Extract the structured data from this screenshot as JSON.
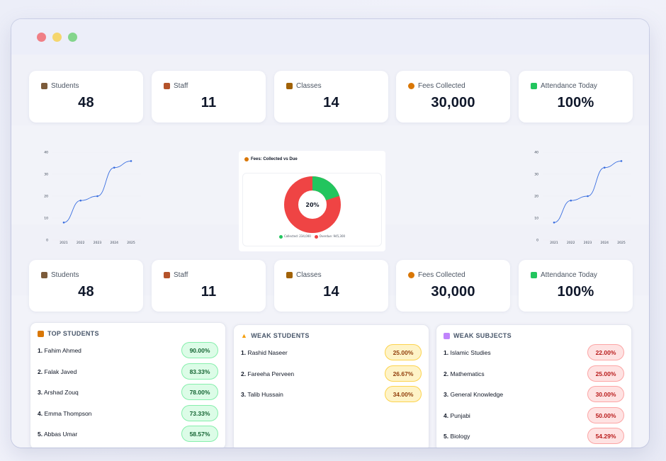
{
  "stats": [
    {
      "label": "Students",
      "value": "48",
      "icon": "student-icon",
      "color": "#7c5b3a"
    },
    {
      "label": "Staff",
      "value": "11",
      "icon": "staff-icon",
      "color": "#b4532a"
    },
    {
      "label": "Classes",
      "value": "14",
      "icon": "school-icon",
      "color": "#a16207"
    },
    {
      "label": "Fees Collected",
      "value": "30,000",
      "icon": "money-bag-icon",
      "color": "#d97706"
    },
    {
      "label": "Attendance Today",
      "value": "100%",
      "icon": "check-box-icon",
      "color": "#22c55e"
    }
  ],
  "line_chart": {
    "categories": [
      "2021",
      "2022",
      "2023",
      "2024",
      "2025"
    ],
    "values": [
      8,
      18,
      20,
      33,
      36
    ],
    "yticks": [
      "0",
      "10",
      "20",
      "30",
      "40"
    ],
    "ylim": [
      0,
      40
    ],
    "color": "#3b6fe0"
  },
  "chart_data": [
    {
      "type": "line",
      "categories": [
        "2021",
        "2022",
        "2023",
        "2024",
        "2025"
      ],
      "series": [
        {
          "values": [
            8,
            18,
            20,
            33,
            36
          ]
        }
      ],
      "ylim": [
        0,
        40
      ]
    },
    {
      "type": "pie",
      "title": "Fees: Collected vs Due",
      "labels": [
        "Collected",
        "Overdue"
      ],
      "values": [
        234000,
        945300
      ],
      "center_label": "20%",
      "legend_text": [
        "Collected: 234,000",
        "Overdue: 945,300"
      ],
      "colors": [
        "#22c55e",
        "#ef4444"
      ]
    },
    {
      "type": "line",
      "categories": [
        "2021",
        "2022",
        "2023",
        "2024",
        "2025"
      ],
      "series": [
        {
          "values": [
            8,
            18,
            20,
            33,
            36
          ]
        }
      ],
      "ylim": [
        0,
        40
      ]
    }
  ],
  "donut": {
    "title": "Fees: Collected vs Due",
    "center": "20%",
    "collected_fraction": 0.2,
    "legend_collected": "Collected: 234,000",
    "legend_overdue": "Overdue: 945,300",
    "color_collected": "#22c55e",
    "color_overdue": "#ef4444"
  },
  "top_students": {
    "title": "TOP STUDENTS",
    "icon": "trophy-icon",
    "items": [
      {
        "num": "1.",
        "name": "Fahim Ahmed",
        "score": "90.00%"
      },
      {
        "num": "2.",
        "name": "Falak Javed",
        "score": "83.33%"
      },
      {
        "num": "3.",
        "name": "Arshad Zouq",
        "score": "78.00%"
      },
      {
        "num": "4.",
        "name": "Emma Thompson",
        "score": "73.33%"
      },
      {
        "num": "5.",
        "name": "Abbas Umar",
        "score": "58.57%"
      }
    ]
  },
  "weak_students": {
    "title": "WEAK STUDENTS",
    "icon": "warning-icon",
    "items": [
      {
        "num": "1.",
        "name": "Rashid Naseer",
        "score": "25.00%"
      },
      {
        "num": "2.",
        "name": "Fareeha Perveen",
        "score": "26.67%"
      },
      {
        "num": "3.",
        "name": "Talib Hussain",
        "score": "34.00%"
      }
    ]
  },
  "weak_subjects": {
    "title": "WEAK SUBJECTS",
    "icon": "books-icon",
    "items": [
      {
        "num": "1.",
        "name": "Islamic Studies",
        "score": "22.00%"
      },
      {
        "num": "2.",
        "name": "Mathematics",
        "score": "25.00%"
      },
      {
        "num": "3.",
        "name": "General Knowledge",
        "score": "30.00%"
      },
      {
        "num": "4.",
        "name": "Punjabi",
        "score": "50.00%"
      },
      {
        "num": "5.",
        "name": "Biology",
        "score": "54.29%"
      }
    ]
  }
}
